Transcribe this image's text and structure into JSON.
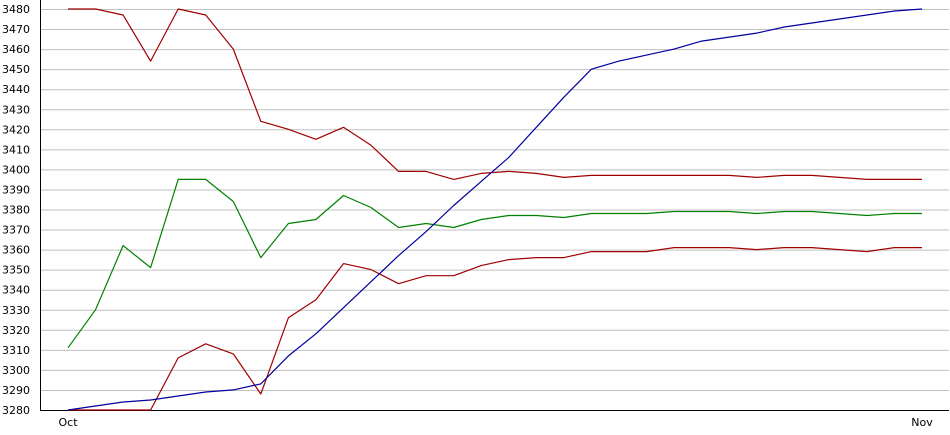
{
  "chart_data": {
    "type": "line",
    "title": "",
    "xlabel": "",
    "ylabel": "",
    "ylim": [
      3280,
      3480
    ],
    "yticks": [
      3280,
      3290,
      3300,
      3310,
      3320,
      3330,
      3340,
      3350,
      3360,
      3370,
      3380,
      3390,
      3400,
      3410,
      3420,
      3430,
      3440,
      3450,
      3460,
      3470,
      3480
    ],
    "xticks": [
      {
        "label": "Oct",
        "x": 0
      },
      {
        "label": "Nov",
        "x": 31
      }
    ],
    "xlim": [
      0,
      31
    ],
    "grid": true,
    "legend": "none",
    "series": [
      {
        "color": "#a00000",
        "x": [
          0,
          1,
          2,
          3,
          4,
          5,
          6,
          7,
          8,
          9,
          10,
          11,
          12,
          13,
          14,
          15,
          16,
          17,
          18,
          19,
          20,
          21,
          22,
          23,
          24,
          25,
          26,
          27,
          28,
          29,
          30,
          31
        ],
        "values": [
          3480,
          3480,
          3477,
          3454,
          3480,
          3477,
          3460,
          3424,
          3420,
          3415,
          3421,
          3412,
          3399,
          3399,
          3395,
          3398,
          3399,
          3398,
          3396,
          3397,
          3397,
          3397,
          3397,
          3397,
          3397,
          3396,
          3397,
          3397,
          3396,
          3395,
          3395,
          3395
        ]
      },
      {
        "color": "#008000",
        "x": [
          0,
          1,
          2,
          3,
          4,
          5,
          6,
          7,
          8,
          9,
          10,
          11,
          12,
          13,
          14,
          15,
          16,
          17,
          18,
          19,
          20,
          21,
          22,
          23,
          24,
          25,
          26,
          27,
          28,
          29,
          30,
          31
        ],
        "values": [
          3311,
          3330,
          3362,
          3351,
          3395,
          3395,
          3384,
          3356,
          3373,
          3375,
          3387,
          3381,
          3371,
          3373,
          3371,
          3375,
          3377,
          3377,
          3376,
          3378,
          3378,
          3378,
          3379,
          3379,
          3379,
          3378,
          3379,
          3379,
          3378,
          3377,
          3378,
          3378
        ]
      },
      {
        "color": "#a00000",
        "x": [
          0,
          1,
          2,
          3,
          4,
          5,
          6,
          7,
          8,
          9,
          10,
          11,
          12,
          13,
          14,
          15,
          16,
          17,
          18,
          19,
          20,
          21,
          22,
          23,
          24,
          25,
          26,
          27,
          28,
          29,
          30,
          31
        ],
        "values": [
          3280,
          3280,
          3280,
          3280,
          3306,
          3313,
          3308,
          3288,
          3326,
          3335,
          3353,
          3350,
          3343,
          3347,
          3347,
          3352,
          3355,
          3356,
          3356,
          3359,
          3359,
          3359,
          3361,
          3361,
          3361,
          3360,
          3361,
          3361,
          3360,
          3359,
          3361,
          3361
        ]
      },
      {
        "color": "#0000a0",
        "x": [
          0,
          1,
          2,
          3,
          4,
          5,
          6,
          7,
          8,
          9,
          10,
          11,
          12,
          13,
          14,
          15,
          16,
          17,
          18,
          19,
          20,
          21,
          22,
          23,
          24,
          25,
          26,
          27,
          28,
          29,
          30,
          31
        ],
        "values": [
          3280,
          3282,
          3284,
          3285,
          3287,
          3289,
          3290,
          3293,
          3307,
          3318,
          3331,
          3344,
          3357,
          3369,
          3382,
          3394,
          3406,
          3421,
          3436,
          3450,
          3454,
          3457,
          3460,
          3464,
          3466,
          3468,
          3471,
          3473,
          3475,
          3477,
          3479,
          3480
        ]
      }
    ]
  }
}
